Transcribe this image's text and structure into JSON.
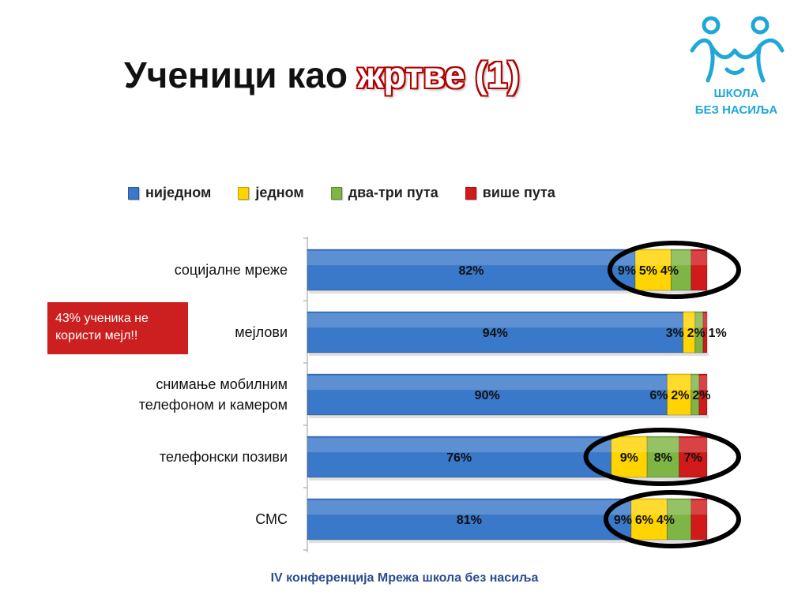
{
  "slide": {
    "title_prefix": "Ученици као ",
    "title_accent": "жртве (1)",
    "footer": "IV конференција Мрежа школа без насиља",
    "note": "43% ученика не користи мејл!!",
    "logo_line1": "ШКОЛА",
    "logo_line2": "БЕЗ НАСИЉА"
  },
  "chart_data": {
    "type": "bar",
    "orientation": "horizontal",
    "stacked": true,
    "title": "",
    "xlabel": "",
    "ylabel": "",
    "legend_placement": "top",
    "grid": false,
    "xlim": [
      0,
      100
    ],
    "categories": [
      "социјалне мреже",
      "мејлови",
      "снимање мобилним телефоном и камером",
      "телефонски позиви",
      "СМС"
    ],
    "category_lines": [
      [
        "социјалне мреже"
      ],
      [
        "мејлови"
      ],
      [
        "снимање мобилним",
        "телефоном и камером"
      ],
      [
        "телефонски позиви"
      ],
      [
        "СМС"
      ]
    ],
    "series": [
      {
        "name": "ниједном",
        "color": "#3a78c9",
        "values": [
          82,
          94,
          90,
          76,
          81
        ],
        "labels": [
          "82%",
          "94%",
          "90%",
          "76%",
          "81%"
        ]
      },
      {
        "name": "једном",
        "color": "#ffd400",
        "values": [
          9,
          3,
          6,
          9,
          9
        ],
        "labels": [
          "9%",
          "3%",
          "6%",
          "9%",
          "9%"
        ]
      },
      {
        "name": "два-три пута",
        "color": "#7fb545",
        "values": [
          5,
          2,
          2,
          8,
          6
        ],
        "labels": [
          "5%",
          "2%",
          "2%",
          "8%",
          "6%"
        ]
      },
      {
        "name": "више пута",
        "color": "#d11a1a",
        "values": [
          4,
          1,
          2,
          7,
          4
        ],
        "labels": [
          "4%",
          "1%",
          "2%",
          "7%",
          "4%"
        ]
      }
    ],
    "highlighted_categories": [
      "социјалне мреже",
      "телефонски позиви",
      "СМС"
    ]
  }
}
